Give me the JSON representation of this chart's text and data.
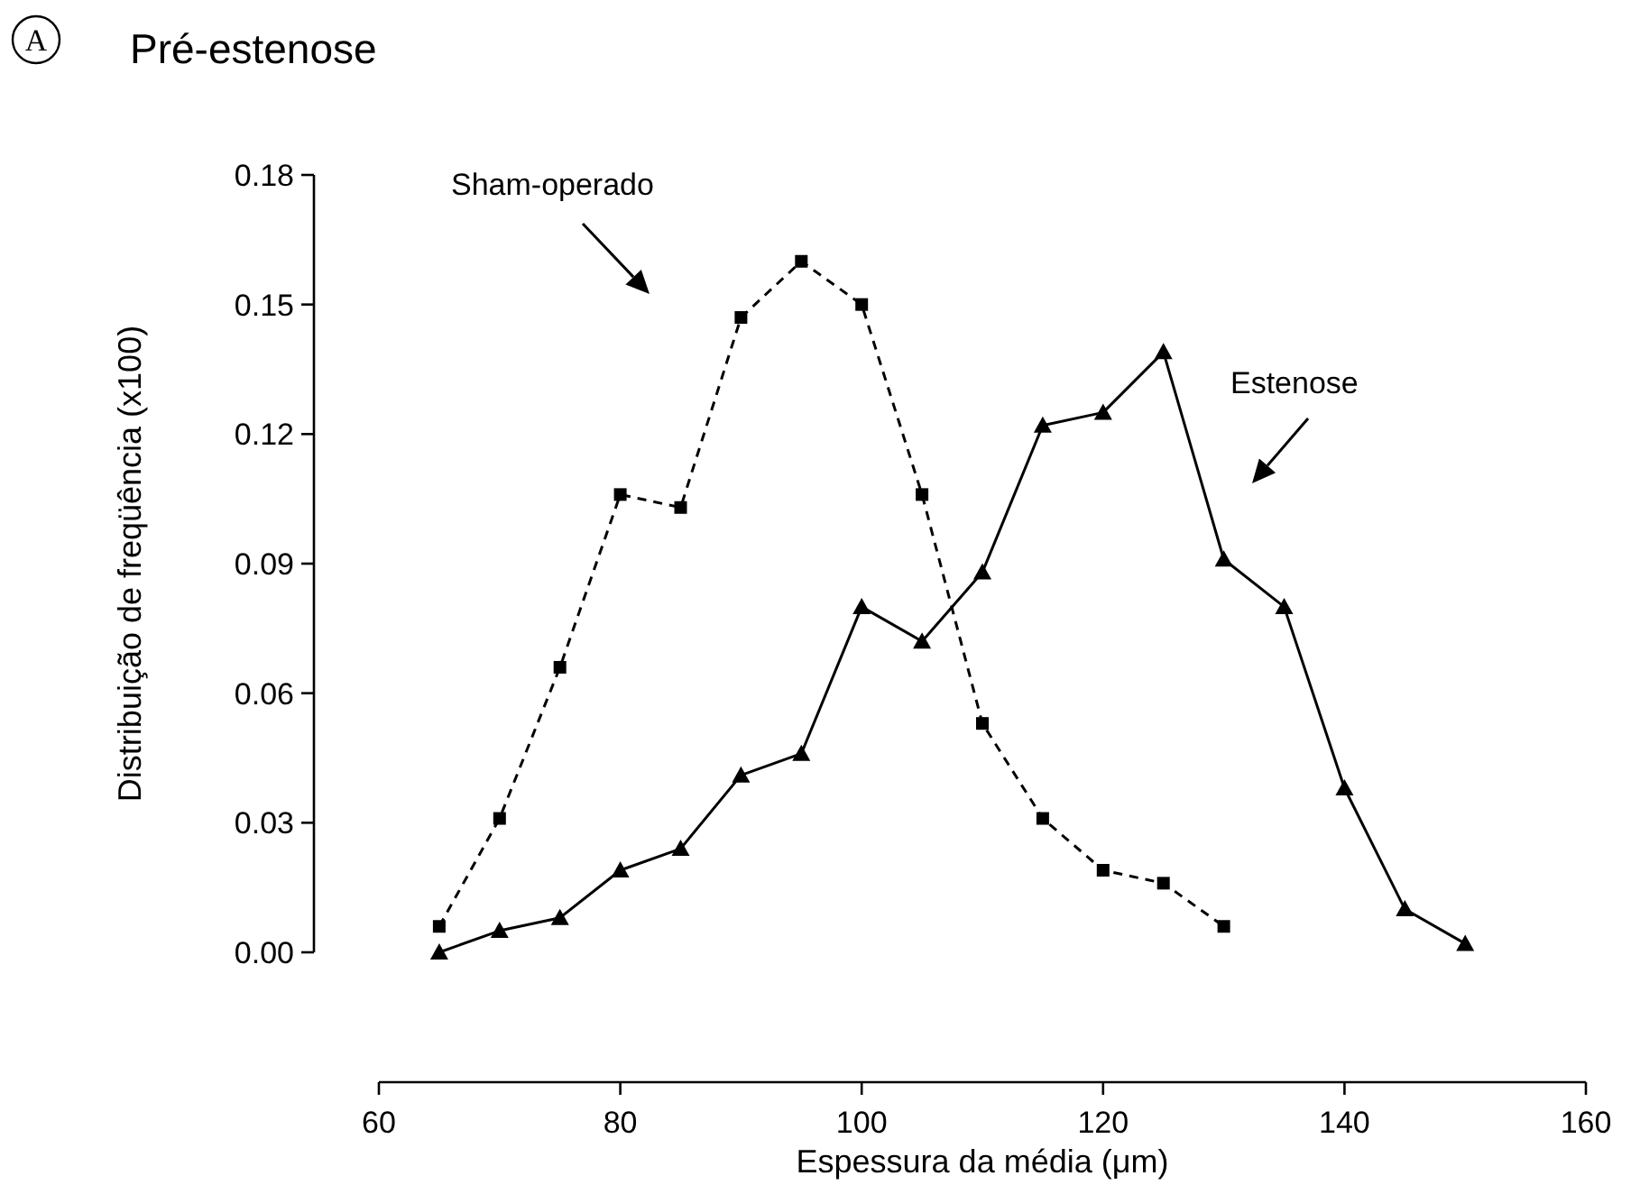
{
  "chart_data": {
    "type": "line",
    "title": "Pré-estenose",
    "xlabel": "Espessura da média (μm)",
    "ylabel": "Distribuição de freqüência (x100)",
    "annotations": [
      "A"
    ],
    "xlim": [
      60,
      160
    ],
    "xticks": [
      60,
      80,
      100,
      120,
      140,
      160
    ],
    "ylim": [
      0,
      0.18
    ],
    "yticks": [
      {
        "value": 0,
        "label": "0.00"
      },
      0.03,
      0.06,
      0.09,
      0.12,
      0.15,
      0.18
    ],
    "grid": false,
    "series": [
      {
        "name": "Sham-operado",
        "color": "#000000",
        "marker": "square",
        "line_style": "dashed",
        "x": [
          65,
          70,
          75,
          80,
          85,
          90,
          95,
          100,
          105,
          110,
          115,
          120,
          125,
          130
        ],
        "values": [
          0.006,
          0.031,
          0.066,
          0.106,
          0.103,
          0.147,
          0.16,
          0.15,
          0.106,
          0.053,
          0.031,
          0.019,
          0.016,
          0.006
        ]
      },
      {
        "name": "Estenose",
        "color": "#000000",
        "marker": "triangle",
        "line_style": "solid",
        "x": [
          65,
          70,
          75,
          80,
          85,
          90,
          95,
          100,
          105,
          110,
          115,
          120,
          125,
          130,
          135,
          140,
          145,
          150
        ],
        "values": [
          0,
          0.005,
          0.008,
          0.019,
          0.024,
          0.041,
          0.046,
          0.08,
          0.072,
          0.088,
          0.122,
          0.125,
          0.139,
          0.091,
          0.08,
          0.038,
          0.01,
          0.002
        ]
      }
    ]
  }
}
